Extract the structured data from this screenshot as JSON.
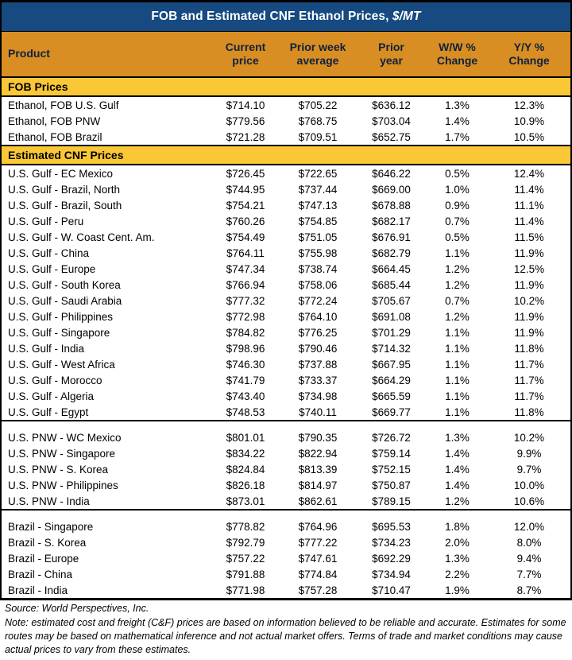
{
  "title": {
    "text": "FOB and Estimated CNF Ethanol Prices, ",
    "unit": "$/MT"
  },
  "colors": {
    "navy_title_bar": "#164A80",
    "orange_header": "#D88E23",
    "gold_band": "#FAC736",
    "border": "#000000",
    "title_text": "#FFFFFF"
  },
  "chart_data": {
    "type": "table",
    "title": "FOB and Estimated CNF Ethanol Prices, $/MT",
    "columns": [
      "Product",
      "Current price",
      "Prior week average",
      "Prior year",
      "W/W % Change",
      "Y/Y % Change"
    ],
    "columns_lines": [
      [
        "Product"
      ],
      [
        "Current",
        "price"
      ],
      [
        "Prior week",
        "average"
      ],
      [
        "Prior",
        "year"
      ],
      [
        "W/W %",
        "Change"
      ],
      [
        "Y/Y %",
        "Change"
      ]
    ],
    "body": [
      {
        "type": "band",
        "label": "FOB Prices"
      },
      {
        "type": "rows",
        "rows": [
          [
            "Ethanol, FOB U.S. Gulf",
            "$714.10",
            "$705.22",
            "$636.12",
            "1.3%",
            "12.3%"
          ],
          [
            "Ethanol, FOB PNW",
            "$779.56",
            "$768.75",
            "$703.04",
            "1.4%",
            "10.9%"
          ],
          [
            "Ethanol, FOB Brazil",
            "$721.28",
            "$709.51",
            "$652.75",
            "1.7%",
            "10.5%"
          ]
        ]
      },
      {
        "type": "band",
        "label": "Estimated CNF Prices"
      },
      {
        "type": "rows",
        "rows": [
          [
            "U.S. Gulf - EC Mexico",
            "$726.45",
            "$722.65",
            "$646.22",
            "0.5%",
            "12.4%"
          ],
          [
            "U.S. Gulf - Brazil, North",
            "$744.95",
            "$737.44",
            "$669.00",
            "1.0%",
            "11.4%"
          ],
          [
            "U.S. Gulf - Brazil, South",
            "$754.21",
            "$747.13",
            "$678.88",
            "0.9%",
            "11.1%"
          ],
          [
            "U.S. Gulf - Peru",
            "$760.26",
            "$754.85",
            "$682.17",
            "0.7%",
            "11.4%"
          ],
          [
            "U.S. Gulf - W. Coast Cent. Am.",
            "$754.49",
            "$751.05",
            "$676.91",
            "0.5%",
            "11.5%"
          ],
          [
            "U.S. Gulf - China",
            "$764.11",
            "$755.98",
            "$682.79",
            "1.1%",
            "11.9%"
          ],
          [
            "U.S. Gulf - Europe",
            "$747.34",
            "$738.74",
            "$664.45",
            "1.2%",
            "12.5%"
          ],
          [
            "U.S. Gulf - South Korea",
            "$766.94",
            "$758.06",
            "$685.44",
            "1.2%",
            "11.9%"
          ],
          [
            "U.S. Gulf - Saudi Arabia",
            "$777.32",
            "$772.24",
            "$705.67",
            "0.7%",
            "10.2%"
          ],
          [
            "U.S. Gulf - Philippines",
            "$772.98",
            "$764.10",
            "$691.08",
            "1.2%",
            "11.9%"
          ],
          [
            "U.S. Gulf - Singapore",
            "$784.82",
            "$776.25",
            "$701.29",
            "1.1%",
            "11.9%"
          ],
          [
            "U.S. Gulf - India",
            "$798.96",
            "$790.46",
            "$714.32",
            "1.1%",
            "11.8%"
          ],
          [
            "U.S. Gulf - West Africa",
            "$746.30",
            "$737.88",
            "$667.95",
            "1.1%",
            "11.7%"
          ],
          [
            "U.S. Gulf - Morocco",
            "$741.79",
            "$733.37",
            "$664.29",
            "1.1%",
            "11.7%"
          ],
          [
            "U.S. Gulf - Algeria",
            "$743.40",
            "$734.98",
            "$665.59",
            "1.1%",
            "11.7%"
          ],
          [
            "U.S. Gulf - Egypt",
            "$748.53",
            "$740.11",
            "$669.77",
            "1.1%",
            "11.8%"
          ]
        ]
      },
      {
        "type": "gap"
      },
      {
        "type": "rows",
        "rows": [
          [
            "U.S. PNW - WC Mexico",
            "$801.01",
            "$790.35",
            "$726.72",
            "1.3%",
            "10.2%"
          ],
          [
            "U.S. PNW - Singapore",
            "$834.22",
            "$822.94",
            "$759.14",
            "1.4%",
            "9.9%"
          ],
          [
            "U.S. PNW - S. Korea",
            "$824.84",
            "$813.39",
            "$752.15",
            "1.4%",
            "9.7%"
          ],
          [
            "U.S. PNW - Philippines",
            "$826.18",
            "$814.97",
            "$750.87",
            "1.4%",
            "10.0%"
          ],
          [
            "U.S. PNW - India",
            "$873.01",
            "$862.61",
            "$789.15",
            "1.2%",
            "10.6%"
          ]
        ]
      },
      {
        "type": "gap"
      },
      {
        "type": "rows",
        "rows": [
          [
            "Brazil - Singapore",
            "$778.82",
            "$764.96",
            "$695.53",
            "1.8%",
            "12.0%"
          ],
          [
            "Brazil - S. Korea",
            "$792.79",
            "$777.22",
            "$734.23",
            "2.0%",
            "8.0%"
          ],
          [
            "Brazil - Europe",
            "$757.22",
            "$747.61",
            "$692.29",
            "1.3%",
            "9.4%"
          ],
          [
            "Brazil - China",
            "$791.88",
            "$774.84",
            "$734.94",
            "2.2%",
            "7.7%"
          ],
          [
            "Brazil - India",
            "$771.98",
            "$757.28",
            "$710.47",
            "1.9%",
            "8.7%"
          ]
        ]
      }
    ]
  },
  "footer": {
    "source": "Source: World Perspectives, Inc.",
    "note": "Note: estimated cost and freight (C&F) prices are based on information believed to be reliable and accurate. Estimates for some routes may be based on mathematical inference and not actual market offers. Terms of trade and market conditions may cause actual prices to vary from these estimates."
  }
}
